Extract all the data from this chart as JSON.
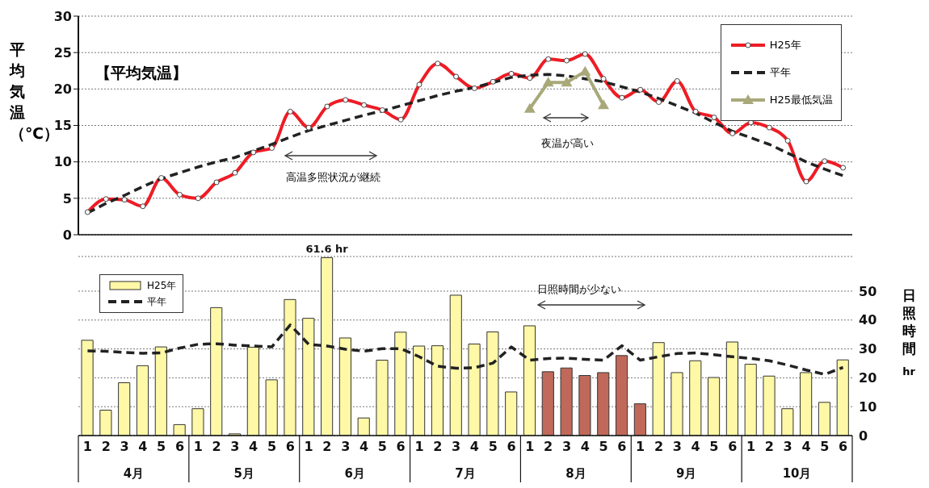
{
  "chart_data": [
    {
      "type": "line",
      "title": "【平均気温】",
      "ylabel": "平均気温（℃）",
      "categories": [
        "1",
        "2",
        "3",
        "4",
        "5",
        "6",
        "1",
        "2",
        "3",
        "4",
        "5",
        "6",
        "1",
        "2",
        "3",
        "4",
        "5",
        "6",
        "1",
        "2",
        "3",
        "4",
        "5",
        "6",
        "1",
        "2",
        "3",
        "4",
        "5",
        "6",
        "1",
        "2",
        "3",
        "4",
        "5",
        "6",
        "1",
        "2",
        "3",
        "4",
        "5",
        "6"
      ],
      "series": [
        {
          "name": "H25年",
          "color": "#ee1c25",
          "marker": "circle",
          "line_style": "solid",
          "values": [
            3.1,
            4.9,
            4.8,
            3.9,
            7.8,
            5.5,
            5.0,
            7.2,
            8.5,
            11.3,
            11.9,
            16.9,
            14.7,
            17.6,
            18.5,
            17.8,
            17.1,
            15.8,
            20.6,
            23.5,
            21.7,
            20.1,
            21.0,
            22.1,
            21.5,
            24.1,
            23.9,
            24.8,
            21.4,
            18.8,
            19.9,
            18.2,
            21.1,
            16.9,
            16.1,
            13.9,
            15.4,
            14.7,
            12.9,
            7.3,
            10.1,
            9.2
          ]
        },
        {
          "name": "平年",
          "color": "#222222",
          "marker": "none",
          "line_style": "dashed",
          "values": [
            3.0,
            4.3,
            5.4,
            6.6,
            7.7,
            8.5,
            9.3,
            10.0,
            10.6,
            11.5,
            12.4,
            13.4,
            14.3,
            15.0,
            15.7,
            16.4,
            17.0,
            17.7,
            18.4,
            19.1,
            19.7,
            20.2,
            20.9,
            21.6,
            21.9,
            22.0,
            21.8,
            21.4,
            21.0,
            20.3,
            19.6,
            18.7,
            17.7,
            16.7,
            15.4,
            14.2,
            13.3,
            12.4,
            11.2,
            10.0,
            9.0,
            8.1
          ]
        },
        {
          "name": "H25最低気温",
          "color": "#a9a87a",
          "marker": "triangle",
          "line_style": "solid",
          "values": [
            null,
            null,
            null,
            null,
            null,
            null,
            null,
            null,
            null,
            null,
            null,
            null,
            null,
            null,
            null,
            null,
            null,
            null,
            null,
            null,
            null,
            null,
            null,
            null,
            17.3,
            20.9,
            20.9,
            22.4,
            17.8,
            null,
            null,
            null,
            null,
            null,
            null,
            null,
            null,
            null,
            null,
            null,
            null,
            null
          ]
        }
      ],
      "ylim": [
        0,
        30
      ],
      "yticks": [
        0,
        5,
        10,
        15,
        20,
        25,
        30
      ],
      "grid": "y",
      "legend": "top right",
      "tick_labels": "y",
      "annotations": [
        "高温多照状況が継続",
        "夜温が高い"
      ]
    },
    {
      "type": "bar",
      "y2label": "日照時間 hr",
      "categories": [
        "1",
        "2",
        "3",
        "4",
        "5",
        "6",
        "1",
        "2",
        "3",
        "4",
        "5",
        "6",
        "1",
        "2",
        "3",
        "4",
        "5",
        "6",
        "1",
        "2",
        "3",
        "4",
        "5",
        "6",
        "1",
        "2",
        "3",
        "4",
        "5",
        "6",
        "1",
        "2",
        "3",
        "4",
        "5",
        "6",
        "1",
        "2",
        "3",
        "4",
        "5",
        "6"
      ],
      "series": [
        {
          "name": "H25年",
          "axis": "y2",
          "colors": [
            "#fff8a6",
            "#fff8a6",
            "#fff8a6",
            "#fff8a6",
            "#fff8a6",
            "#fff8a6",
            "#fff8a6",
            "#fff8a6",
            "#fff8a6",
            "#fff8a6",
            "#fff8a6",
            "#fff8a6",
            "#fff8a6",
            "#fff8a6",
            "#fff8a6",
            "#fff8a6",
            "#fff8a6",
            "#fff8a6",
            "#fff8a6",
            "#fff8a6",
            "#fff8a6",
            "#fff8a6",
            "#fff8a6",
            "#fff8a6",
            "#fff8a6",
            "#c0695a",
            "#c0695a",
            "#c0695a",
            "#c0695a",
            "#c0695a",
            "#c0695a",
            "#fff8a6",
            "#fff8a6",
            "#fff8a6",
            "#fff8a6",
            "#fff8a6",
            "#fff8a6",
            "#fff8a6",
            "#fff8a6",
            "#fff8a6",
            "#fff8a6",
            "#fff8a6"
          ],
          "values": [
            33.0,
            8.8,
            18.3,
            24.2,
            30.7,
            3.8,
            9.3,
            44.3,
            0.6,
            30.6,
            19.3,
            47.1,
            40.6,
            61.6,
            33.8,
            6.1,
            26.1,
            35.8,
            31.0,
            31.1,
            48.6,
            31.7,
            35.9,
            15.1,
            38.0,
            22.1,
            23.4,
            20.8,
            21.8,
            27.7,
            11.0,
            32.2,
            21.8,
            25.9,
            20.1,
            32.4,
            24.7,
            20.6,
            9.3,
            21.8,
            11.5,
            26.2
          ],
          "value_labels": [
            null,
            null,
            null,
            null,
            null,
            null,
            null,
            null,
            null,
            null,
            null,
            null,
            null,
            "61.6 hr",
            null,
            null,
            null,
            null,
            null,
            null,
            null,
            null,
            null,
            null,
            null,
            null,
            null,
            null,
            null,
            null,
            null,
            null,
            null,
            null,
            null,
            null,
            null,
            null,
            null,
            null,
            null,
            null
          ]
        },
        {
          "name": "平年",
          "type": "line",
          "axis": "y2",
          "color": "#222222",
          "line_style": "dashed",
          "values": [
            29.3,
            29.2,
            28.8,
            28.5,
            28.6,
            30.3,
            31.6,
            31.8,
            31.3,
            31.0,
            30.7,
            38.3,
            31.6,
            31.0,
            29.9,
            29.2,
            30.1,
            30.1,
            27.3,
            24.0,
            23.3,
            23.5,
            25.1,
            30.7,
            26.1,
            26.7,
            26.8,
            26.4,
            26.1,
            31.1,
            26.1,
            27.3,
            28.4,
            28.6,
            28.0,
            27.3,
            26.7,
            25.9,
            24.4,
            22.7,
            21.2,
            23.6
          ]
        }
      ],
      "y2lim": [
        0,
        62
      ],
      "y2ticks": [
        0,
        10,
        20,
        30,
        40,
        50
      ],
      "grid": "y",
      "legend": "top left",
      "annotations": [
        "4月",
        "5月",
        "6月",
        "7月",
        "8月",
        "9月",
        "10月",
        "日照時間が少ない"
      ]
    }
  ]
}
